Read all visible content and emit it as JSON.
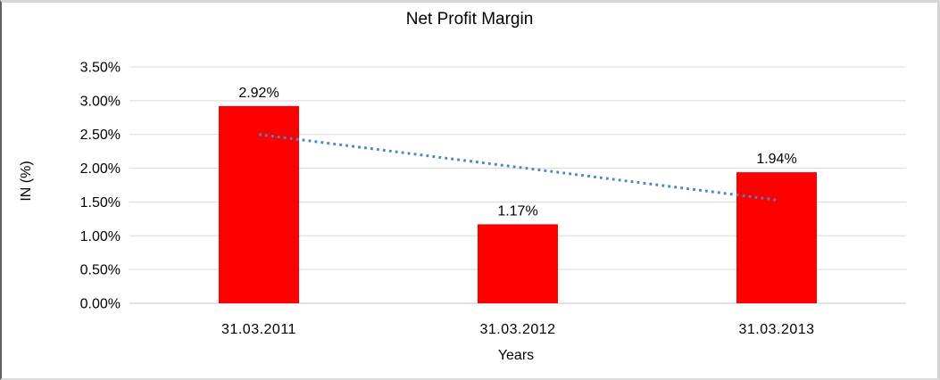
{
  "chart_data": {
    "type": "bar",
    "title": "Net Profit Margin",
    "xlabel": "Years",
    "ylabel": "IN (%)",
    "categories": [
      "31.03.2011",
      "31.03.2012",
      "31.03.2013"
    ],
    "series": [
      {
        "name": "Net Profit Margin",
        "values": [
          2.92,
          1.17,
          1.94
        ]
      }
    ],
    "data_labels": [
      "2.92%",
      "1.17%",
      "1.94%"
    ],
    "y_ticks": [
      {
        "label": "0.00%",
        "value": 0.0
      },
      {
        "label": "0.50%",
        "value": 0.5
      },
      {
        "label": "1.00%",
        "value": 1.0
      },
      {
        "label": "1.50%",
        "value": 1.5
      },
      {
        "label": "2.00%",
        "value": 2.0
      },
      {
        "label": "2.50%",
        "value": 2.5
      },
      {
        "label": "3.00%",
        "value": 3.0
      },
      {
        "label": "3.50%",
        "value": 3.5
      }
    ],
    "ylim": [
      0,
      3.5
    ],
    "grid": true,
    "legend_position": "none",
    "bar_color": "#ff0000",
    "gridline_color": "#d9d9d9",
    "axis_line_color": "#c6c6c6",
    "trendline": {
      "type": "linear",
      "style": "dotted",
      "color": "#4a86c8",
      "start": {
        "category_index": 0,
        "value": 2.5
      },
      "end": {
        "category_index": 2,
        "value": 1.53
      }
    }
  }
}
